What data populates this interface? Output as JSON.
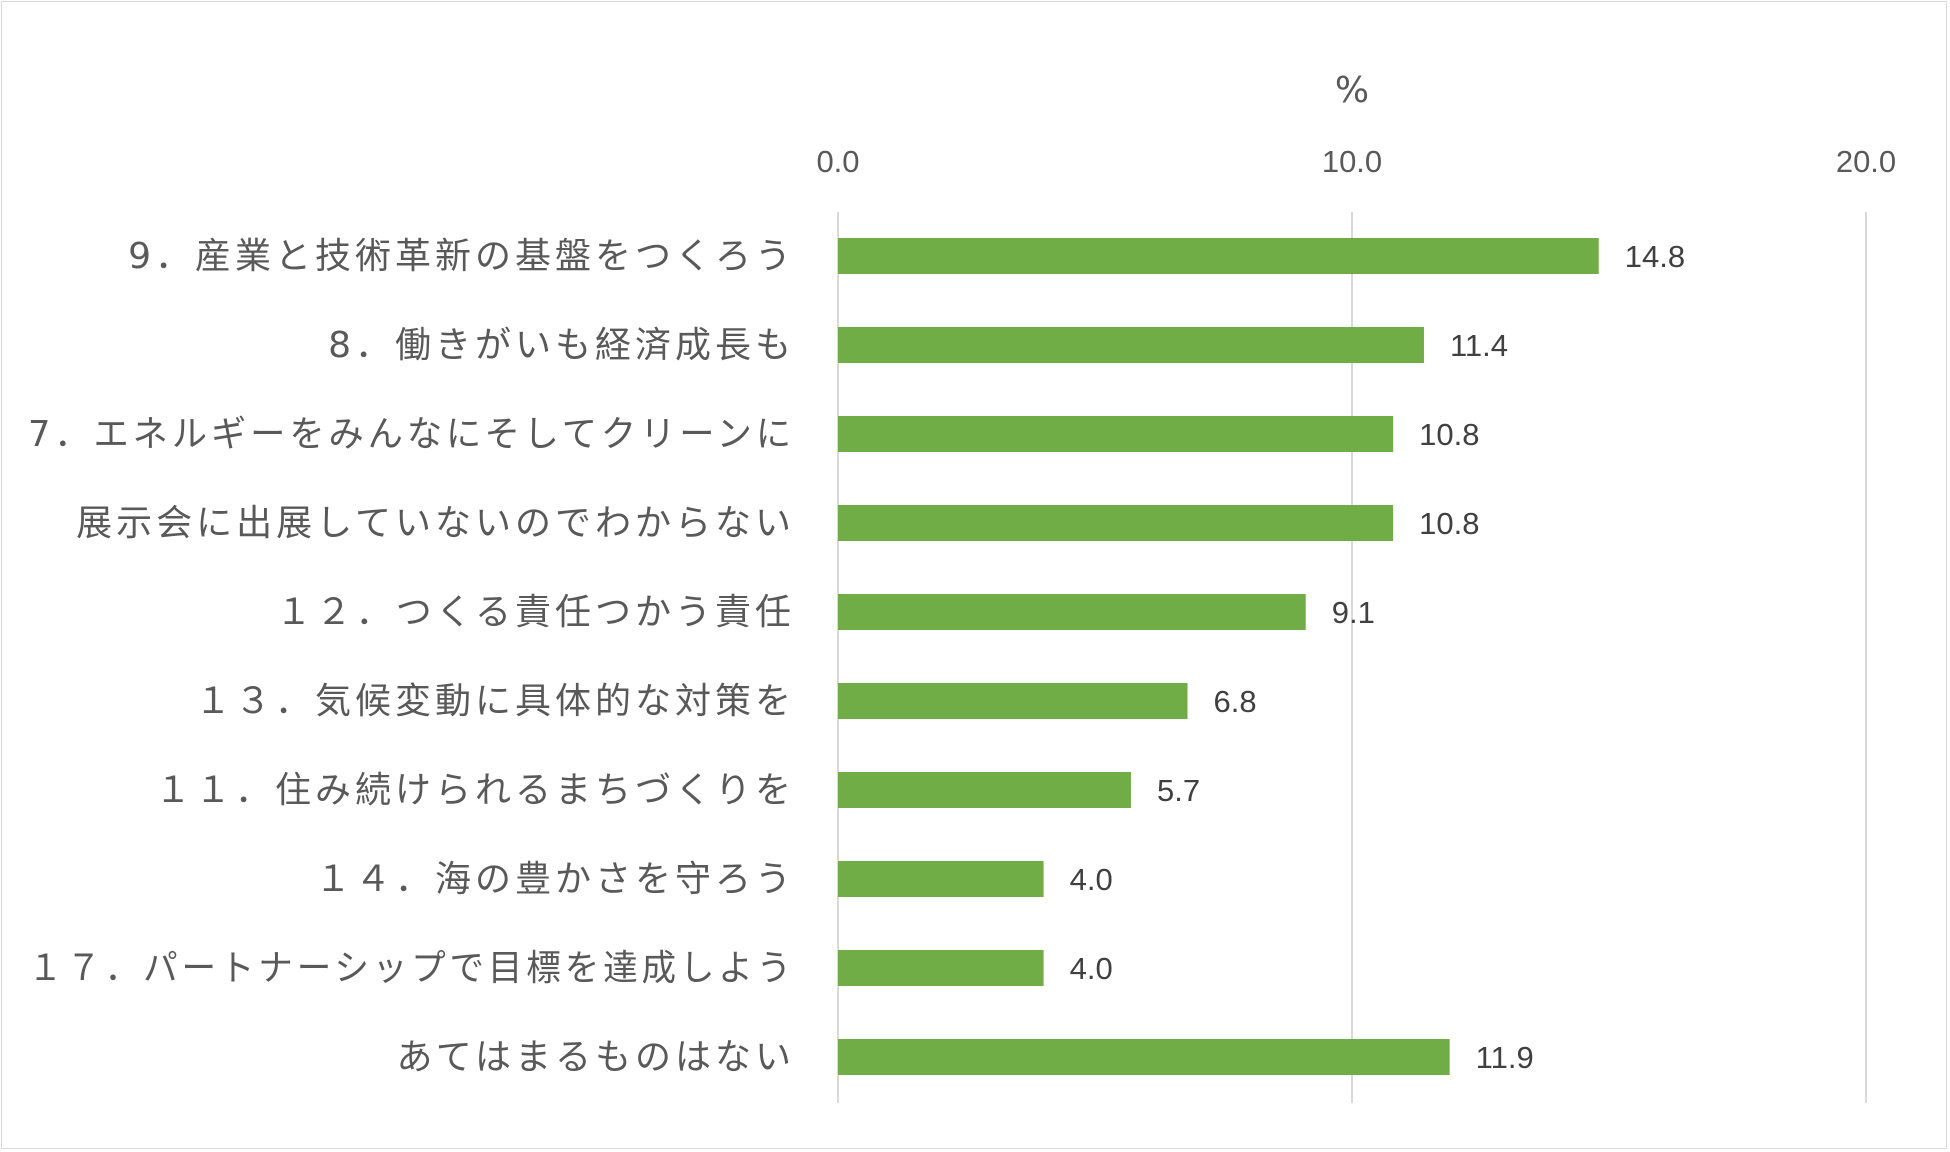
{
  "chart_data": {
    "type": "bar",
    "orientation": "horizontal",
    "axis_unit": "%",
    "xlim": [
      0,
      20
    ],
    "ticks": [
      "0.0",
      "10.0",
      "20.0"
    ],
    "tick_values": [
      0,
      10,
      20
    ],
    "grid": true,
    "axis_position": "top",
    "bar_color": "#70ad47",
    "grid_color": "#d9d9d9",
    "categories": [
      "9．産業と技術革新の基盤をつくろう",
      "8．働きがいも経済成長も",
      "7．エネルギーをみんなにそしてクリーンに",
      "展示会に出展していないのでわからない",
      "１２．つくる責任つかう責任",
      "１３．気候変動に具体的な対策を",
      "１１．住み続けられるまちづくりを",
      "１４．海の豊かさを守ろう",
      "１７．パートナーシップで目標を達成しよう",
      "あてはまるものはない"
    ],
    "values": [
      14.8,
      11.4,
      10.8,
      10.8,
      9.1,
      6.8,
      5.7,
      4.0,
      4.0,
      11.9
    ],
    "value_labels": [
      "14.8",
      "11.4",
      "10.8",
      "10.8",
      "9.1",
      "6.8",
      "5.7",
      "4.0",
      "4.0",
      "11.9"
    ]
  }
}
